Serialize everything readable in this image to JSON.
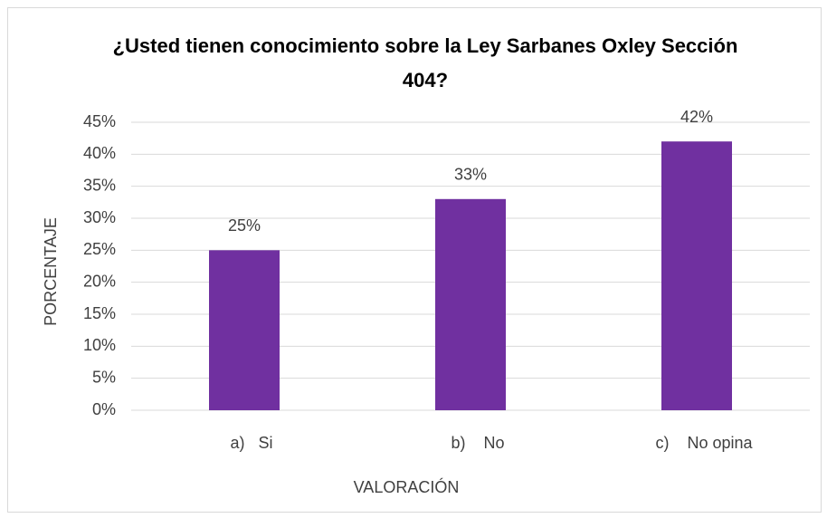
{
  "chart_data": {
    "type": "bar",
    "title": "¿Usted tienen conocimiento sobre la Ley Sarbanes Oxley Sección 404?",
    "x_label": "VALORACIÓN",
    "y_label": "PORCENTAJE",
    "categories": [
      "a)   Si",
      "b)    No",
      "c)    No opina"
    ],
    "values": [
      25,
      33,
      42
    ],
    "value_labels": [
      "25%",
      "33%",
      "42%"
    ],
    "color": "#7030a0",
    "ylim": [
      0,
      45
    ],
    "yticks": [
      {
        "value": 0,
        "label": "0%"
      },
      {
        "value": 5,
        "label": "5%"
      },
      {
        "value": 10,
        "label": "10%"
      },
      {
        "value": 15,
        "label": "15%"
      },
      {
        "value": 20,
        "label": "20%"
      },
      {
        "value": 25,
        "label": "25%"
      },
      {
        "value": 30,
        "label": "30%"
      },
      {
        "value": 35,
        "label": "35%"
      },
      {
        "value": 40,
        "label": "40%"
      },
      {
        "value": 45,
        "label": "45%"
      }
    ],
    "grid": true
  }
}
